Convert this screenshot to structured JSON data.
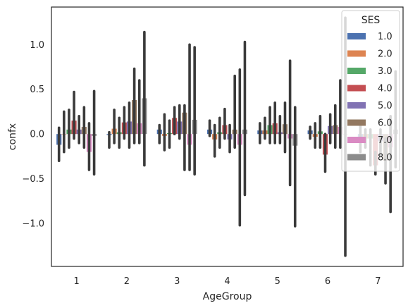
{
  "chart_data": {
    "type": "bar",
    "xlabel": "AgeGroup",
    "ylabel": "confx",
    "categories": [
      "1",
      "2",
      "3",
      "4",
      "5",
      "6",
      "7"
    ],
    "ylim": [
      -1.48,
      1.42
    ],
    "yticks": [
      "1.0",
      "0.5",
      "0.0",
      "−0.5",
      "−1.0"
    ],
    "ytick_values": [
      1.0,
      0.5,
      0.0,
      -0.5,
      -1.0
    ],
    "grid": false,
    "legend": {
      "title": "SES",
      "placement": "top-right"
    },
    "series": [
      {
        "name": "1.0",
        "color": "#4c72b0",
        "values": [
          -0.12,
          -0.01,
          0.05,
          0.05,
          0.04,
          0.04,
          -0.06
        ],
        "ci": [
          [
            -0.3,
            0.07
          ],
          [
            -0.15,
            0.02
          ],
          [
            -0.1,
            0.1
          ],
          [
            -0.02,
            0.15
          ],
          [
            -0.1,
            0.12
          ],
          [
            -0.05,
            0.08
          ],
          [
            -0.2,
            0.1
          ]
        ]
      },
      {
        "name": "2.0",
        "color": "#dd8452",
        "values": [
          0.0,
          0.06,
          -0.02,
          -0.06,
          0.04,
          -0.03,
          -0.05
        ],
        "ci": [
          [
            -0.2,
            0.25
          ],
          [
            -0.1,
            0.27
          ],
          [
            -0.18,
            0.22
          ],
          [
            -0.25,
            0.1
          ],
          [
            -0.05,
            0.18
          ],
          [
            -0.15,
            0.12
          ],
          [
            -0.15,
            0.05
          ]
        ]
      },
      {
        "name": "3.0",
        "color": "#55a868",
        "values": [
          0.05,
          0.02,
          0.01,
          0.02,
          0.1,
          0.03,
          -0.05
        ],
        "ci": [
          [
            -0.15,
            0.27
          ],
          [
            -0.15,
            0.18
          ],
          [
            -0.15,
            0.15
          ],
          [
            -0.15,
            0.18
          ],
          [
            -0.1,
            0.3
          ],
          [
            -0.15,
            0.2
          ],
          [
            -0.35,
            0.05
          ]
        ]
      },
      {
        "name": "4.0",
        "color": "#c44e52",
        "values": [
          0.15,
          0.13,
          0.18,
          0.1,
          0.12,
          -0.23,
          -0.35
        ],
        "ci": [
          [
            -0.05,
            0.47
          ],
          [
            -0.05,
            0.3
          ],
          [
            0.0,
            0.3
          ],
          [
            -0.05,
            0.28
          ],
          [
            -0.1,
            0.35
          ],
          [
            -0.42,
            0.0
          ],
          [
            -0.45,
            -0.2
          ]
        ]
      },
      {
        "name": "5.0",
        "color": "#8172b3",
        "values": [
          0.05,
          0.14,
          0.14,
          -0.06,
          0.02,
          0.09,
          -0.08
        ],
        "ci": [
          [
            -0.1,
            0.2
          ],
          [
            -0.15,
            0.35
          ],
          [
            -0.05,
            0.32
          ],
          [
            -0.2,
            0.1
          ],
          [
            -0.1,
            0.2
          ],
          [
            -0.1,
            0.22
          ],
          [
            -0.25,
            0.05
          ]
        ]
      },
      {
        "name": "6.0",
        "color": "#937860",
        "values": [
          0.08,
          0.38,
          0.24,
          0.05,
          0.11,
          0.1,
          -0.3
        ],
        "ci": [
          [
            -0.15,
            0.3
          ],
          [
            -0.1,
            0.73
          ],
          [
            -0.4,
            0.32
          ],
          [
            -0.15,
            0.65
          ],
          [
            -0.2,
            0.35
          ],
          [
            -0.15,
            0.32
          ],
          [
            -0.55,
            -0.05
          ]
        ]
      },
      {
        "name": "7.0",
        "color": "#da8bc3",
        "values": [
          -0.2,
          0.12,
          -0.12,
          -0.12,
          -0.05,
          0.08,
          -0.15
        ],
        "ci": [
          [
            -0.4,
            0.12
          ],
          [
            -0.1,
            0.6
          ],
          [
            -0.4,
            1.0
          ],
          [
            -1.02,
            0.72
          ],
          [
            -0.57,
            0.82
          ],
          [
            -0.15,
            0.6
          ],
          [
            -0.87,
            0.2
          ]
        ]
      },
      {
        "name": "8.0",
        "color": "#8c8c8c",
        "values": [
          -0.02,
          0.4,
          0.16,
          0.05,
          -0.13,
          0.0,
          0.05
        ],
        "ci": [
          [
            -0.45,
            0.48
          ],
          [
            -0.35,
            1.14
          ],
          [
            -0.45,
            0.97
          ],
          [
            -0.68,
            1.03
          ],
          [
            -1.03,
            0.3
          ],
          [
            -1.36,
            1.3
          ],
          [
            -0.37,
            0.7
          ]
        ]
      }
    ]
  }
}
